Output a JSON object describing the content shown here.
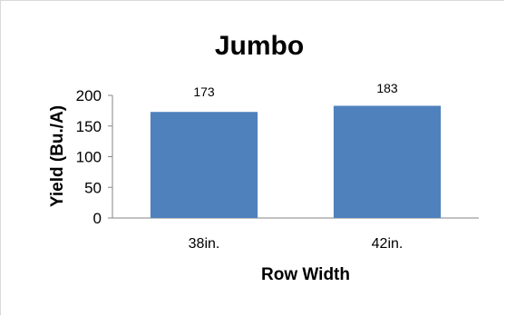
{
  "chart_data": {
    "type": "bar",
    "title": "Jumbo",
    "xlabel": "Row Width",
    "ylabel": "Yield (Bu./A)",
    "categories": [
      "38in.",
      "42in."
    ],
    "values": [
      173,
      183
    ],
    "data_labels": [
      "173",
      "183"
    ],
    "ylim": [
      0,
      200
    ],
    "yticks": [
      0,
      50,
      100,
      150,
      200
    ],
    "grid": false,
    "legend": "none",
    "bar_color": "#4F81BD"
  }
}
